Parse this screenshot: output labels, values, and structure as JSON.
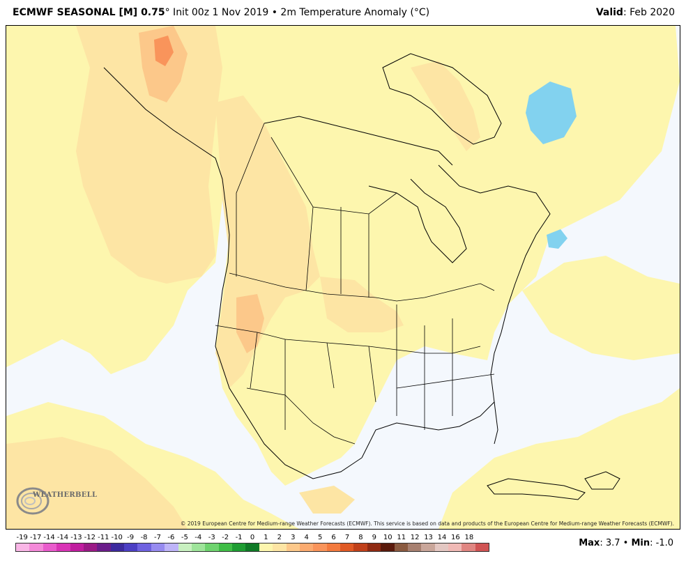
{
  "header": {
    "title_bold": "ECMWF SEASONAL [M] 0.75",
    "title_rest": "° Init 00z 1 Nov 2019 • 2m Temperature Anomaly (°C)",
    "valid_label": "Valid",
    "valid_value": ": Feb 2020"
  },
  "map": {
    "copyright": "© 2019 European Centre for Medium-range Weather Forecasts (ECMWF). This service is based on data and products of the European Centre for Medium-range Weather Forecasts (ECMWF).",
    "logo_text": "WEATHERBELL",
    "colors": {
      "ocean_background": "#f4f8fd",
      "anomaly_0_1": "#fdf6ae",
      "anomaly_1_2": "#fde5a4",
      "anomaly_2_3": "#fcc88a",
      "anomaly_3_4": "#f9945b",
      "anomaly_neg": "#82d2ef",
      "coastline": "#000000"
    }
  },
  "colorbar": {
    "labels": [
      "-19",
      "-17",
      "-14",
      "-14",
      "-13",
      "-12",
      "-11",
      "-10",
      "-9",
      "-8",
      "-7",
      "-6",
      "-5",
      "-4",
      "-3",
      "-2",
      "-1",
      "0",
      "1",
      "2",
      "3",
      "4",
      "5",
      "6",
      "7",
      "8",
      "9",
      "10",
      "11",
      "12",
      "13",
      "14",
      "16",
      "18"
    ],
    "colors": [
      "#f9b6e6",
      "#f48ad9",
      "#e95ccc",
      "#d934b6",
      "#c01e9f",
      "#9a1a86",
      "#6a1d8a",
      "#3c2a9e",
      "#4c3fc4",
      "#6f62e0",
      "#978bf0",
      "#beb4f8",
      "#c8f0c0",
      "#9ee49a",
      "#6ed36e",
      "#3fbd46",
      "#1e9d32",
      "#0f7a27",
      "#fdf6ae",
      "#fde5a4",
      "#fcc88a",
      "#fbab70",
      "#f9945b",
      "#f37a3e",
      "#e05a25",
      "#c0401a",
      "#8f2a12",
      "#5a1a0c",
      "#8a5a40",
      "#a78070",
      "#c9a69a",
      "#e3c7c2",
      "#f0b9b5",
      "#e08682",
      "#d05454"
    ]
  },
  "stats": {
    "max_label": "Max",
    "max_value": ": 3.7",
    "sep": " • ",
    "min_label": "Min",
    "min_value": ": -1.0"
  }
}
